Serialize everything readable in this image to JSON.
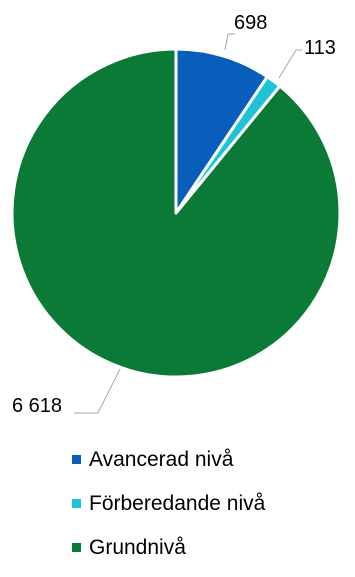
{
  "chart_data": {
    "type": "pie",
    "title": "",
    "legend_position": "bottom",
    "slices": [
      {
        "label": "Avancerad nivå",
        "value": 698,
        "value_label": "698",
        "color": "#0a5ebb"
      },
      {
        "label": "Förberedande nivå",
        "value": 113,
        "value_label": "113",
        "color": "#1ec3d7"
      },
      {
        "label": "Grundnivå",
        "value": 6618,
        "value_label": "6 618",
        "color": "#0a7a36"
      }
    ]
  }
}
